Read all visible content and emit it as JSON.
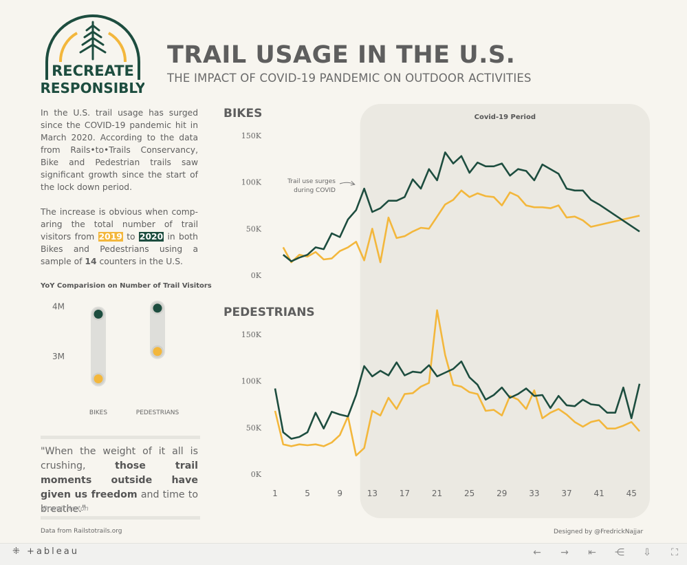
{
  "logo": {
    "line1": "RECREATE",
    "line2": "RESPONSIBLY",
    "colors": {
      "green": "#1d4d3f",
      "yellow": "#f3b73c"
    }
  },
  "header": {
    "title": "TRAIL USAGE IN THE U.S.",
    "subtitle": "THE IMPACT OF COVID-19 PANDEMIC ON OUTDOOR ACTIVITIES"
  },
  "intro": {
    "para1": "In the U.S. trail usage has surged since the COVID-19 pandemic hit in March 2020. According to the data from Rails•to•Trails Conservancy, Bike and Pedestrian trails saw significant growth since the start of the lock down period.",
    "p2_a": "The increase is obvious when comp-aring the total number of trail visitors from",
    "year_a": "2019",
    "p2_to": "to",
    "year_b": "2020",
    "p2_b": "in both Bikes and Pedestrians using a sample of",
    "count": "14",
    "p2_c": "counters in the U.S."
  },
  "quote": {
    "q1": "\"When the weight of it all is crushing,",
    "q_bold": "those trail moments outside have given us freedom",
    "q2": "and time to breathe.\"",
    "author": "-Brandi Horton"
  },
  "footer": {
    "source": "Data from Railstotrails.org",
    "designer": "Designed by @FredrickNajjar"
  },
  "toolbar": {
    "brand": "+ableau"
  },
  "colors": {
    "y2019": "#f3b73c",
    "y2020": "#1d4d3f",
    "covid_bg": "#ebe9e2",
    "page_bg": "#f7f5ef"
  },
  "chart_data": [
    {
      "type": "dot",
      "title": "YoY Comparision on Number of Trail Visitors",
      "categories": [
        "BIKES",
        "PEDESTRIANS"
      ],
      "y_ticks": [
        "3M",
        "4M"
      ],
      "ylim": [
        2.35,
        4.05
      ],
      "series": [
        {
          "name": "2019",
          "color": "#f3b73c",
          "values": [
            2.55,
            3.1
          ]
        },
        {
          "name": "2020",
          "color": "#1d4d3f",
          "values": [
            3.85,
            3.97
          ]
        }
      ]
    },
    {
      "type": "line",
      "title": "BIKES",
      "y_ticks": [
        "0K",
        "50K",
        "100K",
        "150K"
      ],
      "ylim": [
        0,
        150
      ],
      "x_ticks": [
        1,
        5,
        9,
        13,
        17,
        21,
        25,
        29,
        33,
        37,
        41,
        45
      ],
      "x_range": [
        1,
        46
      ],
      "shaded_region": {
        "from": 11,
        "to": 46,
        "label": "Covid-19 Period"
      },
      "annotation": {
        "line1": "Trail use surges",
        "line2": "during COVID",
        "x": 11,
        "y": 96
      },
      "series": [
        {
          "name": "2019",
          "color": "#f3b73c",
          "x": [
            2,
            3,
            4,
            5,
            6,
            7,
            8,
            9,
            10,
            11,
            12,
            13,
            14,
            15,
            16,
            17,
            18,
            19,
            20,
            21,
            22,
            23,
            24,
            25,
            26,
            27,
            28,
            29,
            30,
            31,
            32,
            33,
            34,
            35,
            36,
            37,
            38,
            39,
            40,
            46
          ],
          "values": [
            30,
            14,
            22,
            20,
            25,
            17,
            18,
            26,
            30,
            36,
            16,
            50,
            14,
            62,
            40,
            42,
            47,
            51,
            50,
            63,
            76,
            81,
            91,
            84,
            88,
            85,
            84,
            75,
            89,
            85,
            75,
            73,
            73,
            72,
            75,
            62,
            63,
            59,
            52,
            64
          ]
        },
        {
          "name": "2020",
          "color": "#1d4d3f",
          "x": [
            2,
            3,
            4,
            5,
            6,
            7,
            8,
            9,
            10,
            11,
            12,
            13,
            14,
            15,
            16,
            17,
            18,
            19,
            20,
            21,
            22,
            23,
            24,
            25,
            26,
            27,
            28,
            29,
            30,
            31,
            32,
            33,
            34,
            35,
            36,
            37,
            38,
            39,
            40,
            41,
            46
          ],
          "values": [
            22,
            15,
            19,
            22,
            30,
            28,
            45,
            41,
            60,
            70,
            93,
            68,
            72,
            80,
            80,
            84,
            103,
            93,
            114,
            102,
            132,
            120,
            128,
            110,
            121,
            117,
            117,
            120,
            107,
            114,
            112,
            102,
            119,
            114,
            109,
            93,
            91,
            91,
            81,
            76,
            47
          ]
        }
      ]
    },
    {
      "type": "line",
      "title": "PEDESTRIANS",
      "y_ticks": [
        "0K",
        "50K",
        "100K",
        "150K"
      ],
      "ylim": [
        0,
        150
      ],
      "x_ticks": [
        1,
        5,
        9,
        13,
        17,
        21,
        25,
        29,
        33,
        37,
        41,
        45
      ],
      "x_range": [
        1,
        46
      ],
      "series": [
        {
          "name": "2019",
          "color": "#f3b73c",
          "x": [
            1,
            2,
            3,
            4,
            5,
            6,
            7,
            8,
            9,
            10,
            11,
            12,
            13,
            14,
            15,
            16,
            17,
            18,
            19,
            20,
            21,
            22,
            23,
            24,
            25,
            26,
            27,
            28,
            29,
            30,
            31,
            32,
            33,
            34,
            35,
            36,
            37,
            38,
            39,
            40,
            41,
            42,
            43,
            44,
            45,
            46
          ],
          "values": [
            68,
            32,
            30,
            32,
            31,
            32,
            30,
            34,
            42,
            62,
            20,
            28,
            68,
            63,
            82,
            70,
            86,
            87,
            94,
            98,
            176,
            128,
            96,
            94,
            88,
            86,
            68,
            69,
            63,
            84,
            80,
            70,
            90,
            60,
            66,
            70,
            64,
            56,
            51,
            56,
            58,
            49,
            49,
            52,
            56,
            46
          ]
        },
        {
          "name": "2020",
          "color": "#1d4d3f",
          "x": [
            1,
            2,
            3,
            4,
            5,
            6,
            7,
            8,
            9,
            10,
            11,
            12,
            13,
            14,
            15,
            16,
            17,
            18,
            19,
            20,
            21,
            22,
            23,
            24,
            25,
            26,
            27,
            28,
            29,
            30,
            31,
            32,
            33,
            34,
            35,
            36,
            37,
            38,
            39,
            40,
            41,
            42,
            43,
            44,
            45,
            46
          ],
          "values": [
            92,
            45,
            38,
            40,
            45,
            66,
            49,
            67,
            64,
            62,
            85,
            116,
            105,
            111,
            106,
            120,
            106,
            110,
            109,
            117,
            105,
            109,
            113,
            121,
            104,
            96,
            80,
            85,
            93,
            82,
            86,
            92,
            84,
            85,
            71,
            84,
            74,
            73,
            80,
            75,
            74,
            66,
            66,
            93,
            60,
            97
          ]
        }
      ]
    }
  ]
}
